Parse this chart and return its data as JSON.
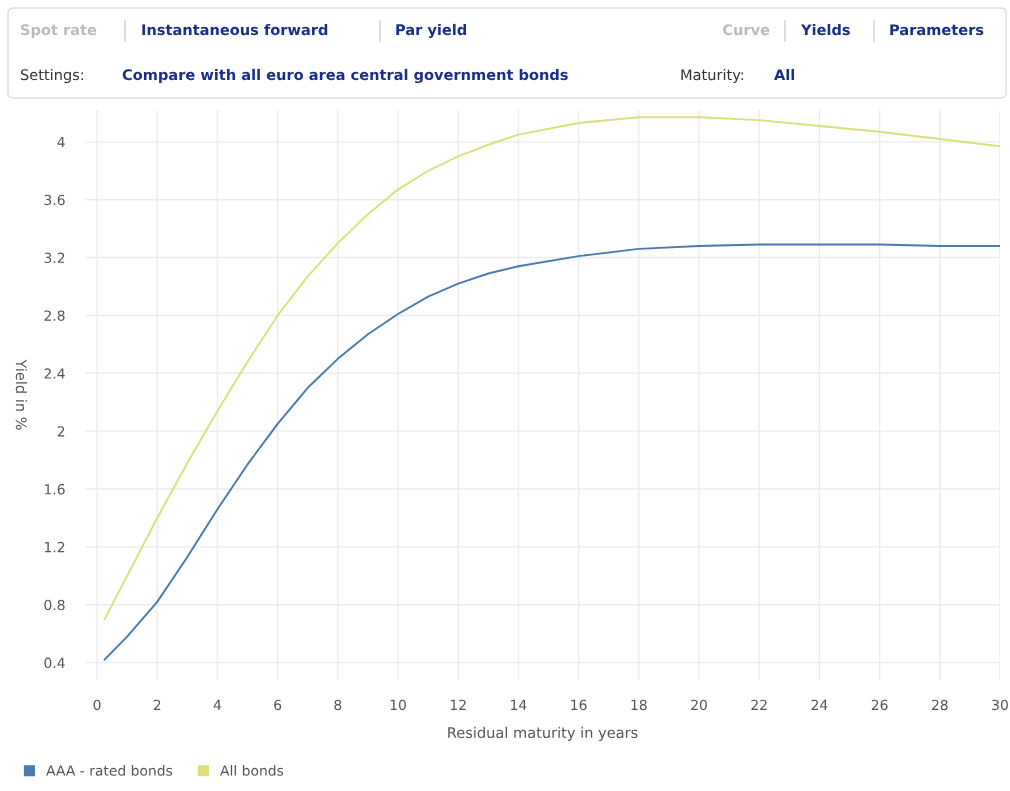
{
  "chart_data": {
    "type": "line",
    "xlabel": "Residual maturity in years",
    "ylabel": "Yield in %",
    "annotations": [
      "Spot rate",
      "Instantaneous forward",
      "Par yield",
      "Curve",
      "Yields",
      "Parameters",
      "Settings:",
      "Compare with all euro area central government bonds",
      "Maturity:",
      "All"
    ],
    "x": [
      0.25,
      1,
      2,
      3,
      4,
      5,
      6,
      7,
      8,
      9,
      10,
      11,
      12,
      13,
      14,
      16,
      18,
      20,
      22,
      24,
      26,
      28,
      30
    ],
    "series": [
      {
        "name": "AAA - rated bonds",
        "color": "#4a7ab0",
        "values": [
          0.42,
          0.58,
          0.82,
          1.13,
          1.46,
          1.77,
          2.05,
          2.3,
          2.5,
          2.67,
          2.81,
          2.93,
          3.02,
          3.09,
          3.14,
          3.21,
          3.26,
          3.28,
          3.29,
          3.29,
          3.29,
          3.28,
          3.28
        ]
      },
      {
        "name": "All bonds",
        "color": "#dede7a",
        "values": [
          0.7,
          1.0,
          1.4,
          1.78,
          2.14,
          2.48,
          2.8,
          3.07,
          3.3,
          3.5,
          3.67,
          3.8,
          3.9,
          3.98,
          4.05,
          4.13,
          4.17,
          4.17,
          4.15,
          4.11,
          4.07,
          4.02,
          3.97
        ]
      }
    ],
    "xlim": [
      -0.4,
      30
    ],
    "ylim": [
      0.28,
      4.22
    ],
    "xticks": [
      0,
      2,
      4,
      6,
      8,
      10,
      12,
      14,
      16,
      18,
      20,
      22,
      24,
      26,
      28,
      30
    ],
    "yticks": [
      0.4,
      0.8,
      1.2,
      1.6,
      2,
      2.4,
      2.8,
      3.2,
      3.6,
      4
    ],
    "grid": true,
    "legend": "bottom left",
    "marker": "none",
    "line_style": "solid"
  }
}
